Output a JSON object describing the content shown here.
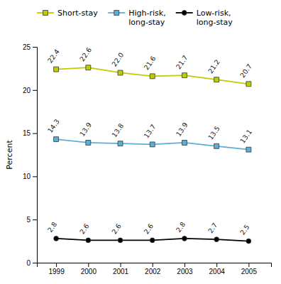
{
  "chart_data": {
    "type": "line",
    "x": [
      1999,
      2000,
      2001,
      2002,
      2003,
      2004,
      2005
    ],
    "series": [
      {
        "name": "Short-stay",
        "color": "#bfcc00",
        "marker": "square",
        "values": [
          22.4,
          22.6,
          22.0,
          21.6,
          21.7,
          21.2,
          20.7
        ],
        "value_labels": [
          "22.4",
          "22.6",
          "22.0",
          "21.6",
          "21.7",
          "21.2",
          "20.7"
        ]
      },
      {
        "name": "High-risk,\nlong-stay",
        "color": "#5bafd6",
        "marker": "square",
        "values": [
          14.3,
          13.9,
          13.8,
          13.7,
          13.9,
          13.5,
          13.1
        ]
      },
      {
        "name": "Low-risk,\nlong-stay",
        "color": "#000000",
        "marker": "circle",
        "values": [
          2.8,
          2.6,
          2.6,
          2.6,
          2.8,
          2.7,
          2.5
        ]
      }
    ],
    "ylabel": "Percent",
    "xlim": [
      1998.4,
      2005.7
    ],
    "xticks": [
      1999,
      2000,
      2001,
      2002,
      2003,
      2004,
      2005
    ],
    "ylim": [
      0,
      25
    ],
    "yticks": [
      0,
      5,
      10,
      15,
      20,
      25
    ],
    "data_labels": true,
    "grid": false,
    "legend": "top"
  }
}
